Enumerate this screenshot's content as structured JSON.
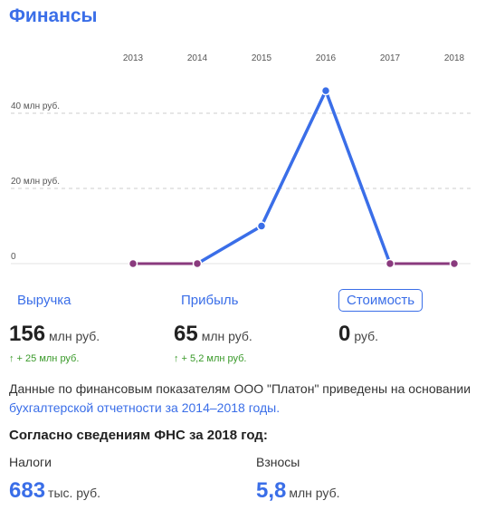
{
  "section_title": "Финансы",
  "chart_data": {
    "type": "line",
    "x": [
      "2013",
      "2014",
      "2015",
      "2016",
      "2017",
      "2018"
    ],
    "series": [
      {
        "values": [
          0,
          0,
          10,
          46,
          0,
          0
        ]
      }
    ],
    "y_ticks": [
      {
        "value": 40,
        "label": "40 млн руб."
      },
      {
        "value": 20,
        "label": "20 млн руб."
      },
      {
        "value": 0,
        "label": "0"
      }
    ],
    "ylim": [
      0,
      47
    ],
    "line_color": "#3a6ee8",
    "zero_segment_color": "#8a3a7e",
    "point_fill_zero": "#8a3a7e",
    "point_fill_nonzero": "#3a6ee8",
    "grid": "dashed horizontal"
  },
  "tabs": {
    "revenue": "Выручка",
    "profit": "Прибыль",
    "value": "Стоимость"
  },
  "metrics": {
    "revenue": {
      "value": "156",
      "unit": "млн руб.",
      "delta": "↑ + 25 млн руб."
    },
    "profit": {
      "value": "65",
      "unit": "млн руб.",
      "delta": "↑ + 5,2 млн руб."
    },
    "value": {
      "value": "0",
      "unit": "руб."
    }
  },
  "note": {
    "text": "Данные по финансовым показателям ООО \"Платон\" приведены на основании",
    "link": "бухгалтерской отчетности за 2014–2018 годы."
  },
  "fns": {
    "heading": "Согласно сведениям ФНС за 2018 год:",
    "taxes_label": "Налоги",
    "taxes_value": "683",
    "taxes_unit": "тыс. руб.",
    "contrib_label": "Взносы",
    "contrib_value": "5,8",
    "contrib_unit": "млн руб."
  },
  "colors": {
    "accent": "#3a6ee8",
    "positive": "#3a9a2a"
  }
}
